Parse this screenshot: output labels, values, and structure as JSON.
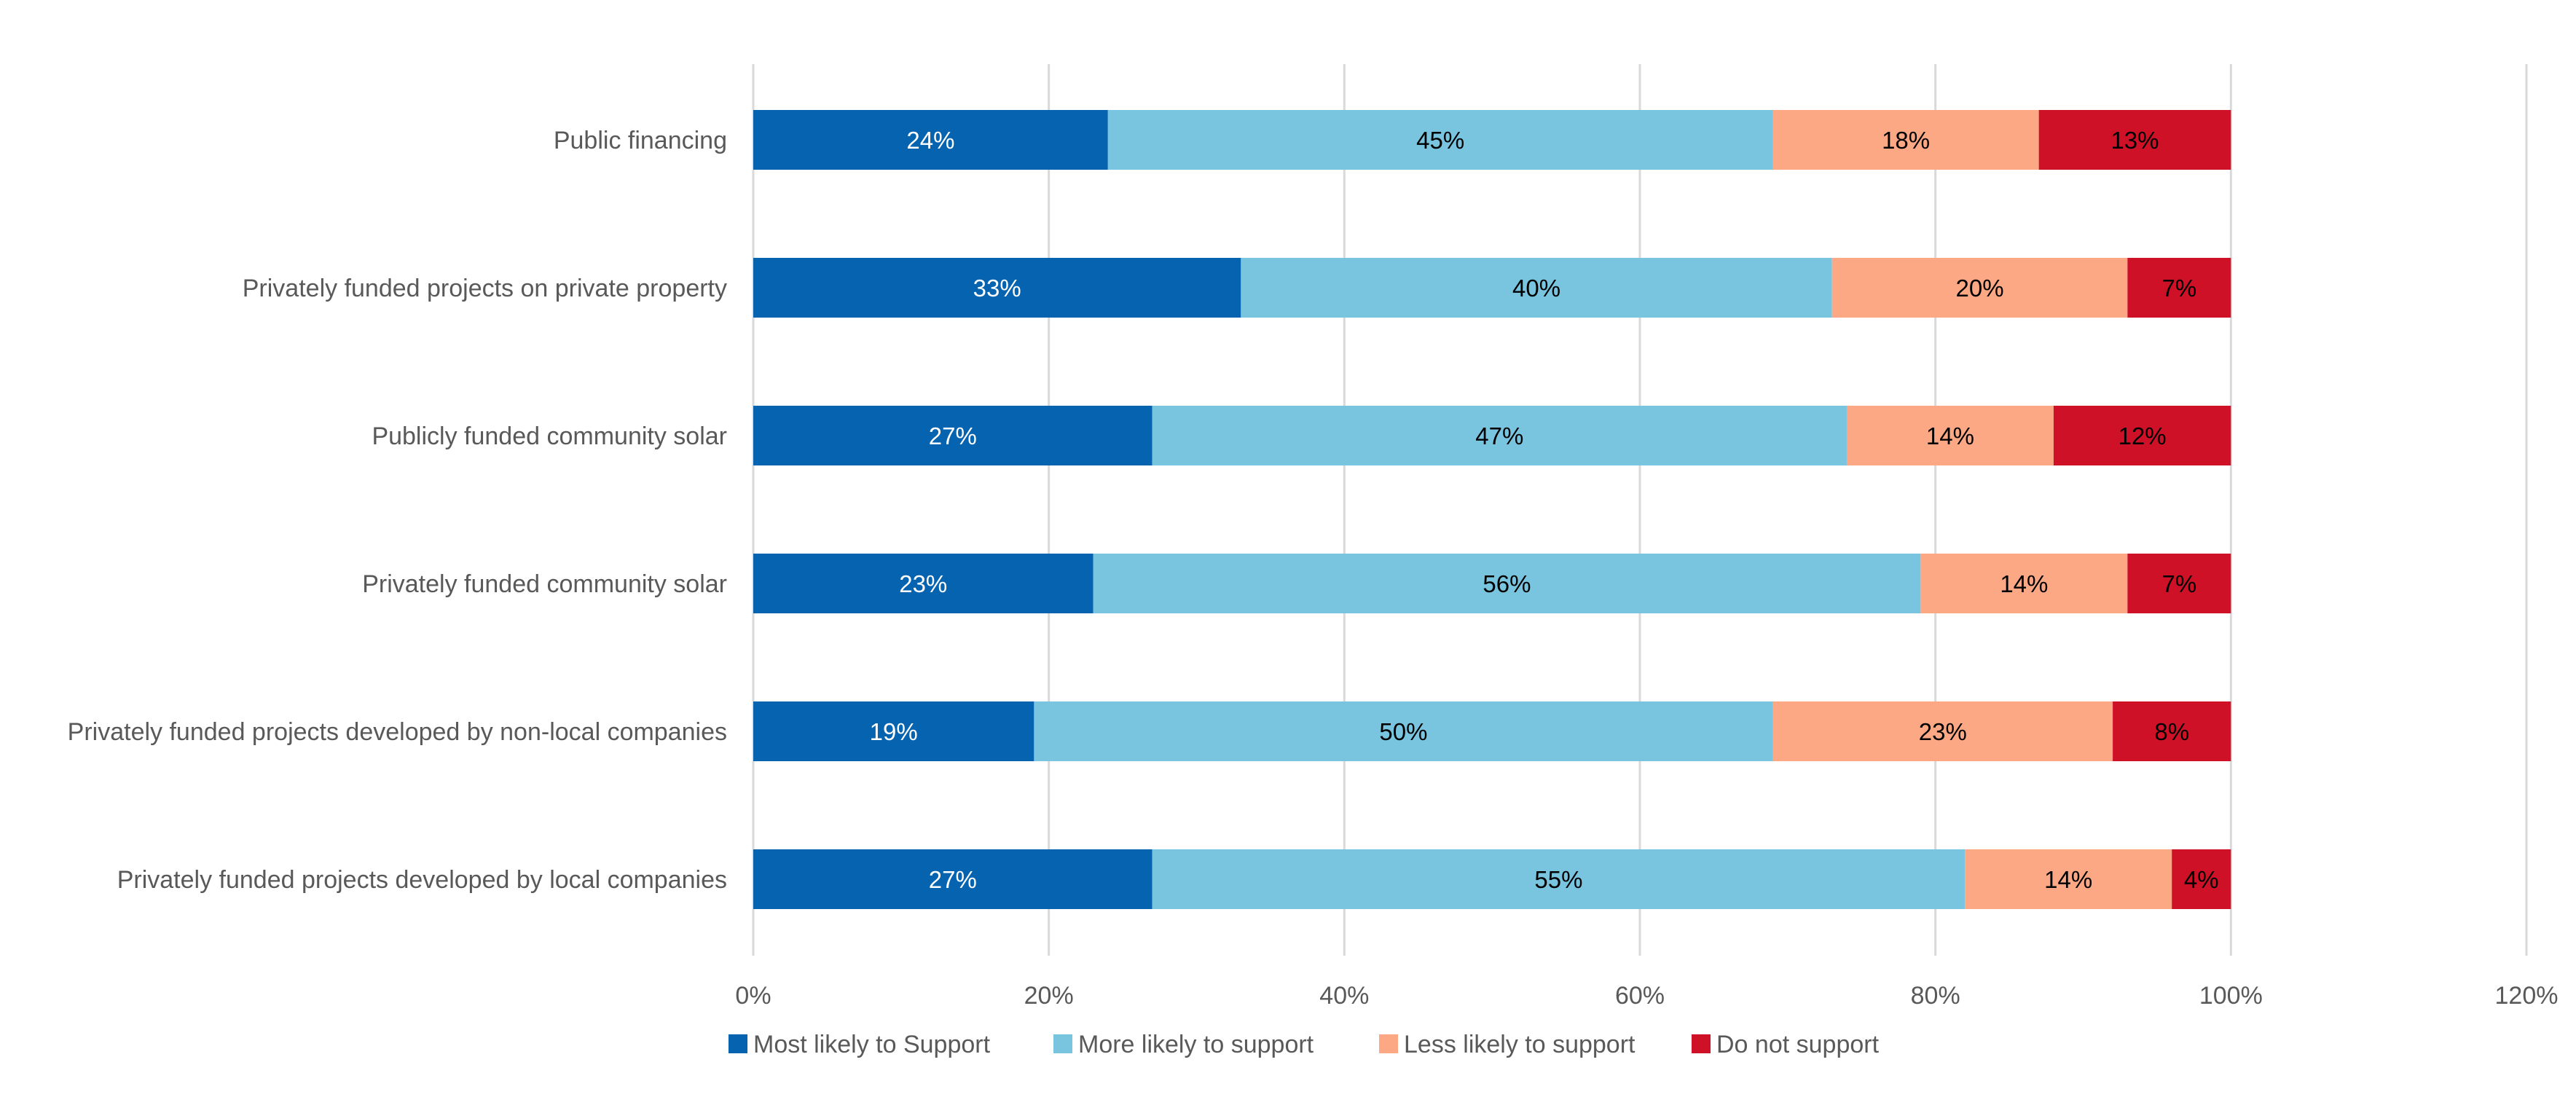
{
  "chart_data": {
    "type": "bar",
    "orientation": "horizontal",
    "stacked": true,
    "title": "",
    "xlabel": "",
    "ylabel": "",
    "xlim": [
      0,
      120
    ],
    "xticks": [
      "0%",
      "20%",
      "40%",
      "60%",
      "80%",
      "100%",
      "120%"
    ],
    "xtick_values": [
      0,
      20,
      40,
      60,
      80,
      100,
      120
    ],
    "grid": "vertical",
    "legend_position": "bottom",
    "categories": [
      "Public financing",
      "Privately funded projects on private property",
      "Publicly funded community solar",
      "Privately funded community solar",
      "Privately funded projects developed by non-local companies",
      "Privately funded projects developed by local companies"
    ],
    "series": [
      {
        "name": "Most likely to Support",
        "color": "#0563b0",
        "label_color": "#ffffff",
        "values": [
          24,
          33,
          27,
          23,
          19,
          27
        ],
        "labels": [
          "24%",
          "33%",
          "27%",
          "23%",
          "19%",
          "27%"
        ]
      },
      {
        "name": "More likely to support",
        "color": "#79c5e0",
        "label_color": "#000000",
        "values": [
          45,
          40,
          47,
          56,
          50,
          55
        ],
        "labels": [
          "45%",
          "40%",
          "47%",
          "56%",
          "50%",
          "55%"
        ]
      },
      {
        "name": "Less likely to support",
        "color": "#fca885",
        "label_color": "#000000",
        "values": [
          18,
          20,
          14,
          14,
          23,
          14
        ],
        "labels": [
          "18%",
          "20%",
          "14%",
          "14%",
          "23%",
          "14%"
        ]
      },
      {
        "name": "Do not support",
        "color": "#cf1127",
        "label_color": "#000000",
        "values": [
          13,
          7,
          12,
          7,
          8,
          4
        ],
        "labels": [
          "13%",
          "7%",
          "12%",
          "7%",
          "8%",
          "4%"
        ]
      }
    ],
    "colors": {
      "grid": "#d9d9d9",
      "tick_text": "#595959",
      "category_text": "#595959"
    }
  }
}
